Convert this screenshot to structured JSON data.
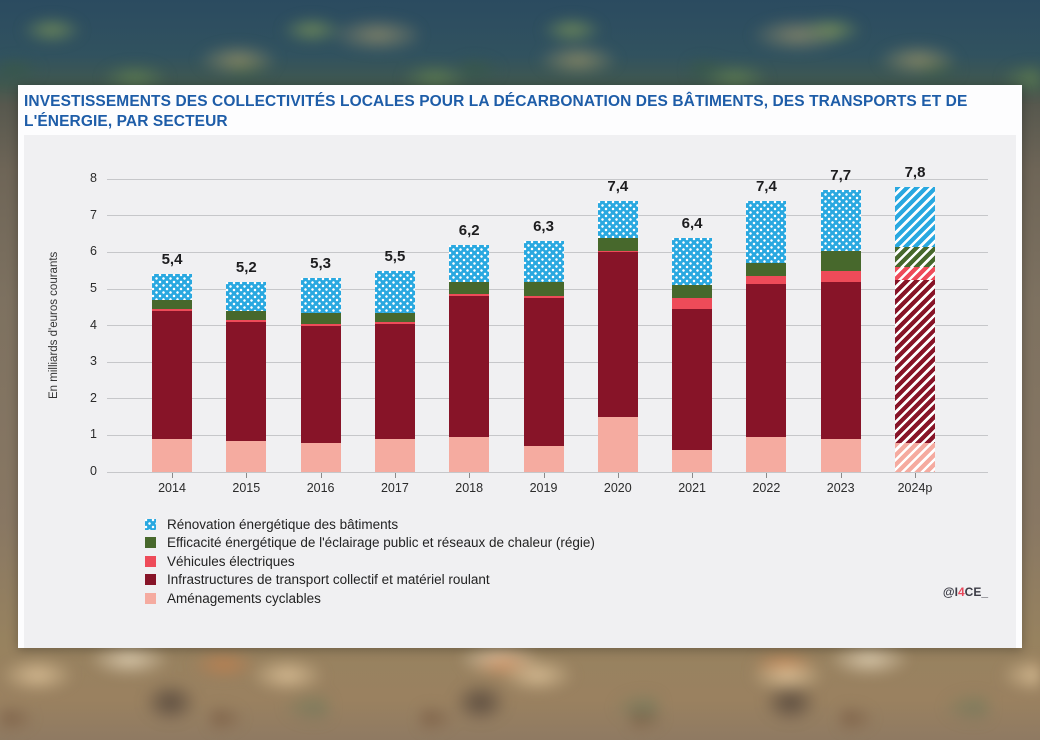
{
  "title": "INVESTISSEMENTS DES COLLECTIVITÉS LOCALES POUR LA DÉCARBONATION DES BÂTIMENTS, DES TRANSPORTS ET DE L'ÉNERGIE, PAR SECTEUR",
  "credit": {
    "prefix": "@I",
    "highlight": "4",
    "suffix": "CE_"
  },
  "colors": {
    "title_blue": "#1e5da8",
    "renovation_blue": "#29a8e0",
    "eclairage_green": "#47682c",
    "vehicules_red": "#ee4b59",
    "transport_maroon": "#871428",
    "cyclables_pink": "#f5aba0",
    "panel_background": "#f0f0f2",
    "gridline": "#c6c7ca"
  },
  "chart_data": {
    "type": "bar",
    "stacked": true,
    "title": "Investissements des collectivités locales pour la décarbonation des bâtiments, des transports et de l'énergie, par secteur",
    "ylabel": "En milliards d'euros courants",
    "xlabel": "",
    "ylim": [
      0,
      8
    ],
    "yticks": [
      0,
      1,
      2,
      3,
      4,
      5,
      6,
      7,
      8
    ],
    "grid": true,
    "legend_position": "bottom-left",
    "categories": [
      "2014",
      "2015",
      "2016",
      "2017",
      "2018",
      "2019",
      "2020",
      "2021",
      "2022",
      "2023",
      "2024p"
    ],
    "totals": [
      "5,4",
      "5,2",
      "5,3",
      "5,5",
      "6,2",
      "6,3",
      "7,4",
      "6,4",
      "7,4",
      "7,7",
      "7,8"
    ],
    "projected_last_category": true,
    "series": [
      {
        "key": "amenagements-cyclables",
        "name": "Aménagements cyclables",
        "color": "#f5aba0",
        "pattern": "solid",
        "values": [
          0.9,
          0.85,
          0.8,
          0.9,
          0.95,
          0.7,
          1.5,
          0.6,
          0.95,
          0.9,
          0.8
        ]
      },
      {
        "key": "infrastructures-transport-collectif",
        "name": "Infrastructures de transport collectif et matériel roulant",
        "color": "#871428",
        "pattern": "solid",
        "values": [
          3.5,
          3.25,
          3.2,
          3.15,
          3.85,
          4.05,
          4.5,
          3.85,
          4.2,
          4.3,
          4.45
        ]
      },
      {
        "key": "vehicules-electriques",
        "name": "Véhicules électriques",
        "color": "#ee4b59",
        "pattern": "solid",
        "values": [
          0.05,
          0.05,
          0.05,
          0.05,
          0.05,
          0.05,
          0.05,
          0.3,
          0.2,
          0.3,
          0.35
        ]
      },
      {
        "key": "eclairage-public-reseaux-chaleur",
        "name": "Efficacité énergétique de l'éclairage public et réseaux de chaleur (régie)",
        "color": "#47682c",
        "pattern": "solid",
        "values": [
          0.25,
          0.25,
          0.3,
          0.25,
          0.35,
          0.4,
          0.35,
          0.35,
          0.35,
          0.55,
          0.55
        ]
      },
      {
        "key": "renovation-energetique-batiments",
        "name": "Rénovation énergétique des bâtiments",
        "color": "#29a8e0",
        "pattern": "dots",
        "values": [
          0.7,
          0.8,
          0.95,
          1.15,
          1.0,
          1.1,
          1.0,
          1.3,
          1.7,
          1.65,
          1.65
        ]
      }
    ],
    "legend": [
      {
        "key": "renovation-energetique-batiments",
        "label": "Rénovation énergétique des bâtiments",
        "color": "#29a8e0",
        "pattern": "dots"
      },
      {
        "key": "eclairage-public-reseaux-chaleur",
        "label": "Efficacité énergétique de l'éclairage public et réseaux de chaleur (régie)",
        "color": "#47682c",
        "pattern": "solid"
      },
      {
        "key": "vehicules-electriques",
        "label": "Véhicules électriques",
        "color": "#ee4b59",
        "pattern": "solid"
      },
      {
        "key": "infrastructures-transport-collectif",
        "label": "Infrastructures de transport collectif et matériel roulant",
        "color": "#871428",
        "pattern": "solid"
      },
      {
        "key": "amenagements-cyclables",
        "label": "Aménagements cyclables",
        "color": "#f5aba0",
        "pattern": "solid"
      }
    ]
  }
}
